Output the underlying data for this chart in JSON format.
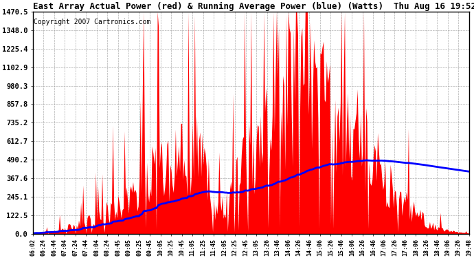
{
  "title": "East Array Actual Power (red) & Running Average Power (blue) (Watts)  Thu Aug 16 19:52",
  "copyright": "Copyright 2007 Cartronics.com",
  "yticks": [
    0.0,
    122.5,
    245.1,
    367.6,
    490.2,
    612.7,
    735.2,
    857.8,
    980.3,
    1102.9,
    1225.4,
    1348.0,
    1470.5
  ],
  "ymax": 1470.5,
  "ymin": 0.0,
  "bg_color": "#ffffff",
  "grid_color": "#aaaaaa",
  "red_color": "#ff0000",
  "blue_color": "#0000ff",
  "xtick_labels": [
    "06:02",
    "06:24",
    "06:44",
    "07:04",
    "07:24",
    "07:44",
    "08:04",
    "08:24",
    "08:45",
    "09:05",
    "09:25",
    "09:45",
    "10:05",
    "10:25",
    "10:45",
    "11:05",
    "11:25",
    "11:45",
    "12:05",
    "12:25",
    "12:45",
    "13:05",
    "13:26",
    "13:46",
    "14:06",
    "14:26",
    "14:46",
    "15:06",
    "15:26",
    "15:46",
    "16:06",
    "16:26",
    "16:46",
    "17:06",
    "17:26",
    "17:46",
    "18:06",
    "18:26",
    "18:46",
    "19:06",
    "19:26",
    "19:48"
  ]
}
